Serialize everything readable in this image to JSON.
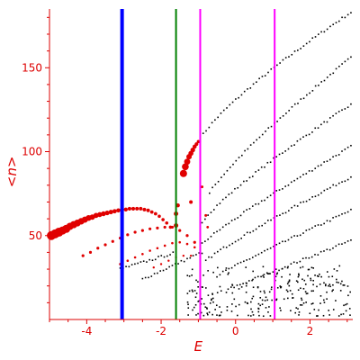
{
  "chart_data": {
    "type": "scatter",
    "xlabel": "E",
    "ylabel": "<n>",
    "xlim": [
      -5.0,
      3.15
    ],
    "ylim": [
      0,
      185
    ],
    "x_ticks": [
      -4,
      -2,
      0,
      2
    ],
    "x_tick_labels": [
      "-4",
      "-2",
      "0",
      "2"
    ],
    "y_ticks": [
      50,
      100,
      150
    ],
    "y_tick_labels": [
      "50",
      "100",
      "150"
    ],
    "grid": false,
    "colors": {
      "axis": "#dd0000",
      "red_points": "#e00000",
      "black_points": "#000000",
      "blue_line": "#0000ff",
      "green_line": "#008000",
      "magenta_line": "#ff00ff"
    },
    "vertical_lines": [
      {
        "x": -3.05,
        "color": "#0000ff",
        "width": 4
      },
      {
        "x": -1.6,
        "color": "#008000",
        "width": 2
      },
      {
        "x": -0.95,
        "color": "#ff00ff",
        "width": 2
      },
      {
        "x": 1.05,
        "color": "#ff00ff",
        "width": 2
      }
    ],
    "series": [
      {
        "color": "#e00000",
        "size": "variable",
        "points": [
          [
            -4.95,
            50,
            5
          ],
          [
            -4.85,
            51,
            5
          ],
          [
            -4.75,
            52,
            5
          ],
          [
            -4.65,
            53,
            4.5
          ],
          [
            -4.55,
            54,
            4.5
          ],
          [
            -4.45,
            55.5,
            4
          ],
          [
            -4.35,
            56.5,
            4
          ],
          [
            -4.25,
            57.5,
            3.8
          ],
          [
            -4.15,
            58.5,
            3.6
          ],
          [
            -4.05,
            59.5,
            3.4
          ],
          [
            -3.95,
            60.5,
            3.2
          ],
          [
            -3.85,
            61,
            3
          ],
          [
            -3.75,
            62,
            2.9
          ],
          [
            -3.65,
            62.5,
            2.8
          ],
          [
            -3.55,
            63,
            2.7
          ],
          [
            -3.45,
            63.5,
            2.6
          ],
          [
            -3.35,
            64,
            2.5
          ],
          [
            -3.25,
            64.5,
            2.4
          ],
          [
            -3.15,
            65,
            2.3
          ],
          [
            -3.05,
            65.5,
            2.2
          ],
          [
            -2.95,
            65.5,
            2.2
          ],
          [
            -2.85,
            66,
            2.1
          ],
          [
            -2.75,
            66,
            2.1
          ],
          [
            -2.65,
            66,
            2
          ],
          [
            -2.55,
            66,
            2
          ],
          [
            -2.45,
            65.5,
            2
          ],
          [
            -2.35,
            65,
            2
          ],
          [
            -2.25,
            64,
            1.9
          ],
          [
            -2.15,
            63,
            1.9
          ],
          [
            -2.05,
            61.5,
            1.8
          ],
          [
            -1.95,
            59.5,
            1.8
          ],
          [
            -1.85,
            57.5,
            1.8
          ],
          [
            -1.75,
            55,
            1.8
          ],
          [
            -4.1,
            38,
            1.6
          ],
          [
            -3.9,
            40,
            1.6
          ],
          [
            -3.7,
            42.5,
            1.6
          ],
          [
            -3.5,
            44.5,
            1.6
          ],
          [
            -3.3,
            46.5,
            1.6
          ],
          [
            -3.1,
            48.5,
            1.6
          ],
          [
            -2.9,
            50.5,
            1.6
          ],
          [
            -2.7,
            52,
            1.6
          ],
          [
            -2.5,
            53,
            1.6
          ],
          [
            -2.3,
            54,
            1.6
          ],
          [
            -2.1,
            54.5,
            1.6
          ],
          [
            -1.9,
            55,
            1.6
          ],
          [
            -1.7,
            55,
            1.6
          ],
          [
            -1.5,
            53,
            1.6
          ],
          [
            -1.3,
            50,
            1.6
          ],
          [
            -1.1,
            46,
            1.6
          ],
          [
            -3.1,
            33,
            1.3
          ],
          [
            -2.9,
            35,
            1.3
          ],
          [
            -2.7,
            37,
            1.3
          ],
          [
            -2.5,
            39,
            1.3
          ],
          [
            -2.3,
            41,
            1.3
          ],
          [
            -2.1,
            42.5,
            1.3
          ],
          [
            -1.9,
            44,
            1.3
          ],
          [
            -1.7,
            45.5,
            1.3
          ],
          [
            -1.5,
            46,
            1.3
          ],
          [
            -1.3,
            45,
            1.3
          ],
          [
            -1.1,
            43,
            1.3
          ],
          [
            -2.2,
            31,
            1.2
          ],
          [
            -2.0,
            33,
            1.2
          ],
          [
            -1.8,
            35,
            1.2
          ],
          [
            -1.6,
            37,
            1.2
          ],
          [
            -1.4,
            38,
            1.2
          ],
          [
            -1.2,
            38,
            1.2
          ],
          [
            -1.4,
            87,
            4
          ],
          [
            -1.35,
            91,
            3.8
          ],
          [
            -1.3,
            94,
            3.4
          ],
          [
            -1.25,
            97,
            3
          ],
          [
            -1.2,
            99,
            2.8
          ],
          [
            -1.15,
            101,
            2.6
          ],
          [
            -1.1,
            103,
            2.3
          ],
          [
            -1.05,
            104.5,
            2
          ],
          [
            -1.0,
            106,
            1.8
          ],
          [
            -1.6,
            56,
            2.5
          ],
          [
            -1.6,
            63,
            2.5
          ],
          [
            -1.55,
            68,
            2.2
          ],
          [
            -1.2,
            70,
            2
          ],
          [
            -0.9,
            79,
            1.5
          ],
          [
            -0.8,
            62,
            1.5
          ],
          [
            -0.75,
            55,
            1.4
          ]
        ]
      },
      {
        "color": "#000000",
        "size": 1,
        "curves": [
          {
            "x0": -0.95,
            "y0": 107,
            "x1": 3.1,
            "y1": 183,
            "k": 0.8
          },
          {
            "x0": -0.7,
            "y0": 75,
            "x1": 3.1,
            "y1": 156,
            "k": 0.85
          },
          {
            "x0": -0.9,
            "y0": 58,
            "x1": 3.1,
            "y1": 128,
            "k": 0.85
          },
          {
            "x0": -0.9,
            "y0": 45,
            "x1": 3.1,
            "y1": 103,
            "k": 0.9
          },
          {
            "x0": -0.8,
            "y0": 35,
            "x1": 3.1,
            "y1": 85,
            "k": 0.9
          },
          {
            "x0": -0.5,
            "y0": 26,
            "x1": 3.1,
            "y1": 65,
            "k": 0.95
          },
          {
            "x0": -0.2,
            "y0": 18,
            "x1": 3.1,
            "y1": 47,
            "k": 1.0
          },
          {
            "x0": -2.5,
            "y0": 24,
            "x1": -0.9,
            "y1": 40,
            "k": 1.0
          },
          {
            "x0": -3.1,
            "y0": 30,
            "x1": -1.6,
            "y1": 40,
            "k": 1.0
          }
        ],
        "cloud": {
          "xmin": -1.3,
          "xmax": 3.1,
          "ymin": 2,
          "ymax": 32,
          "count": 260
        }
      }
    ]
  }
}
